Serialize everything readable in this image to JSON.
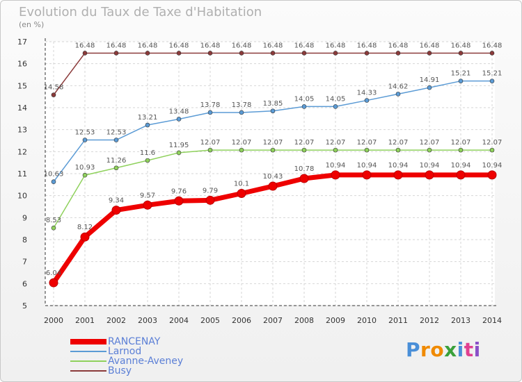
{
  "chart_data": {
    "type": "line",
    "title": "Evolution du Taux de Taxe d'Habitation",
    "subtitle": "(en %)",
    "ylim": [
      5,
      17
    ],
    "yticks": [
      "5",
      "6",
      "7",
      "8",
      "9",
      "10",
      "11",
      "12",
      "13",
      "14",
      "15",
      "16",
      "17"
    ],
    "categories": [
      "2000",
      "2001",
      "2002",
      "2003",
      "2004",
      "2005",
      "2006",
      "2007",
      "2008",
      "2009",
      "2010",
      "2011",
      "2012",
      "2013",
      "2014"
    ],
    "grid": true,
    "legend_position": "bottom-left",
    "series": [
      {
        "name": "RANCENAY",
        "color": "#ee0000",
        "values": [
          6.04,
          8.12,
          9.34,
          9.57,
          9.76,
          9.79,
          10.1,
          10.43,
          10.78,
          10.94,
          10.94,
          10.94,
          10.94,
          10.94,
          10.94
        ],
        "labels": [
          "6.04",
          "8.12",
          "9.34",
          "9.57",
          "9.76",
          "9.79",
          "10.1",
          "10.43",
          "10.78",
          "10.94",
          "10.94",
          "10.94",
          "10.94",
          "10.94",
          "10.94"
        ]
      },
      {
        "name": "Larnod",
        "color": "#5b9bd5",
        "values": [
          10.63,
          12.53,
          12.53,
          13.21,
          13.48,
          13.78,
          13.78,
          13.85,
          14.05,
          14.05,
          14.33,
          14.62,
          14.91,
          15.21,
          15.21
        ],
        "labels": [
          "10.63",
          "12.53",
          "12.53",
          "13.21",
          "13.48",
          "13.78",
          "13.78",
          "13.85",
          "14.05",
          "14.05",
          "14.33",
          "14.62",
          "14.91",
          "15.21",
          "15.21"
        ]
      },
      {
        "name": "Avanne-Aveney",
        "color": "#8fd15c",
        "values": [
          8.53,
          10.93,
          11.26,
          11.6,
          11.95,
          12.07,
          12.07,
          12.07,
          12.07,
          12.07,
          12.07,
          12.07,
          12.07,
          12.07,
          12.07
        ],
        "labels": [
          "8.53",
          "10.93",
          "11.26",
          "11.6",
          "11.95",
          "12.07",
          "12.07",
          "12.07",
          "12.07",
          "12.07",
          "12.07",
          "12.07",
          "12.07",
          "12.07",
          "12.07"
        ]
      },
      {
        "name": "Busy",
        "color": "#8b3a3a",
        "values": [
          14.58,
          16.48,
          16.48,
          16.48,
          16.48,
          16.48,
          16.48,
          16.48,
          16.48,
          16.48,
          16.48,
          16.48,
          16.48,
          16.48,
          16.48
        ],
        "labels": [
          "14.58",
          "16.48",
          "16.48",
          "16.48",
          "16.48",
          "16.48",
          "16.48",
          "16.48",
          "16.48",
          "16.48",
          "16.48",
          "16.48",
          "16.48",
          "16.48",
          "16.48"
        ]
      }
    ]
  },
  "logo": {
    "text": "Proxiti",
    "letters": [
      "P",
      "r",
      "o",
      "x",
      "i",
      "t",
      "i"
    ],
    "colors": [
      "#4a8fd8",
      "#f08a00",
      "#f08a00",
      "#3aa03a",
      "#4a8fd8",
      "#e04090",
      "#8a50c8"
    ]
  }
}
